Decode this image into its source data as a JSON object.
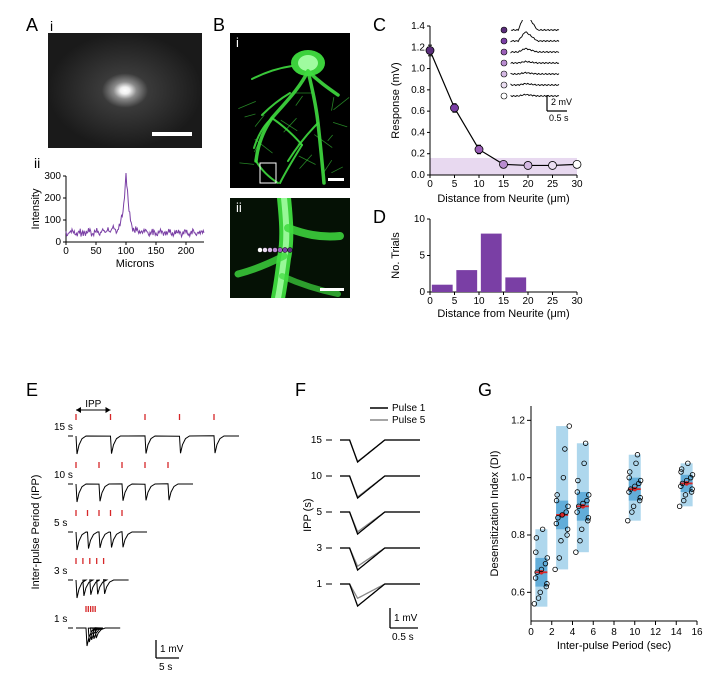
{
  "labels": {
    "A": "A",
    "B": "B",
    "C": "C",
    "D": "D",
    "E": "E",
    "F": "F",
    "G": "G",
    "i": "i",
    "ii": "ii"
  },
  "colors": {
    "purple": "#7a3fa5",
    "purple_fill": "#9b5fb8",
    "green": "#3fdc3f",
    "green_dark": "#1f9f1f",
    "gray": "#888888",
    "black": "#000000",
    "red": "#d62728",
    "box_blue": "#8bc6e6",
    "box_mean": "#d62728"
  },
  "panelA": {
    "spot": {
      "scalebar_color": "#ffffff",
      "background": "#1a1a1a"
    },
    "intensity": {
      "x": [
        0,
        5,
        10,
        15,
        20,
        25,
        30,
        35,
        40,
        45,
        50,
        55,
        60,
        65,
        70,
        75,
        80,
        85,
        90,
        95,
        100,
        105,
        110,
        115,
        120,
        125,
        130,
        135,
        140,
        145,
        150,
        155,
        160,
        165,
        170,
        175,
        180,
        185,
        190,
        195,
        200,
        205,
        210,
        215,
        220,
        225,
        230
      ],
      "y": [
        40,
        42,
        44,
        41,
        43,
        40,
        45,
        42,
        44,
        43,
        42,
        50,
        48,
        46,
        52,
        55,
        58,
        60,
        70,
        140,
        300,
        140,
        70,
        55,
        50,
        48,
        46,
        44,
        43,
        42,
        44,
        43,
        41,
        42,
        43,
        44,
        42,
        43,
        41,
        40,
        42,
        43,
        44,
        42,
        41,
        40,
        42
      ],
      "yticks": [
        0,
        100,
        200,
        300
      ],
      "xticks": [
        0,
        50,
        100,
        150,
        200
      ],
      "xlabel": "Microns",
      "ylabel": "Intensity",
      "line_color": "#7a3fa5"
    }
  },
  "panelB": {
    "neuron_color": "#3fdc3f",
    "background": "#000000",
    "scalebar_color": "#ffffff"
  },
  "panelC": {
    "x": [
      0,
      5,
      10,
      15,
      20,
      25,
      30
    ],
    "y": [
      1.17,
      0.63,
      0.24,
      0.1,
      0.09,
      0.09,
      0.1
    ],
    "err": [
      0.05,
      0.04,
      0.04,
      0.03,
      0.03,
      0.03,
      0.03
    ],
    "point_fills": [
      "#5a2d7a",
      "#7a3fa5",
      "#9b5fb8",
      "#b98cd0",
      "#d4b8e3",
      "#eaddf1",
      "#ffffff"
    ],
    "point_stroke": "#000000",
    "baseline_fill": "#e8d9f0",
    "baseline_y": 0.16,
    "xticks": [
      0,
      5,
      10,
      15,
      20,
      25,
      30
    ],
    "yticks": [
      0,
      0.2,
      0.4,
      0.6,
      0.8,
      1.0,
      1.2,
      1.4
    ],
    "xlabel": "Distance from Neurite (μm)",
    "ylabel": "Response (mV)",
    "inset_scale_x": "0.5 s",
    "inset_scale_y": "2 mV"
  },
  "panelD": {
    "bins": [
      2.5,
      7.5,
      12.5,
      17.5,
      22.5,
      27.5
    ],
    "counts": [
      1,
      3,
      8,
      2,
      0,
      0
    ],
    "bar_color": "#7a3fa5",
    "xticks": [
      0,
      5,
      10,
      15,
      20,
      25,
      30
    ],
    "yticks": [
      0,
      5,
      10
    ],
    "xlabel": "Distance from Neurite (μm)",
    "ylabel": "No. Trials"
  },
  "panelE": {
    "ipp_values": [
      15,
      10,
      5,
      3,
      1
    ],
    "ipp_label": "IPP",
    "ylabel": "Inter-pulse Period (IPP)",
    "scale_x": "5 s",
    "scale_y": "1 mV",
    "tick_color": "#d62728",
    "trace_color": "#000000",
    "rows": {
      "15": {
        "n": 5,
        "amps": [
          1.0,
          0.98,
          0.97,
          0.96,
          0.95
        ]
      },
      "10": {
        "n": 5,
        "amps": [
          1.0,
          0.96,
          0.93,
          0.91,
          0.9
        ]
      },
      "5": {
        "n": 5,
        "amps": [
          1.0,
          0.92,
          0.88,
          0.86,
          0.85
        ]
      },
      "3": {
        "n": 5,
        "amps": [
          1.0,
          0.88,
          0.82,
          0.79,
          0.77
        ]
      },
      "1": {
        "n": 5,
        "amps": [
          1.0,
          0.78,
          0.66,
          0.6,
          0.56
        ]
      }
    }
  },
  "panelF": {
    "legend": {
      "pulse1": "Pulse 1",
      "pulse5": "Pulse 5"
    },
    "pulse1_color": "#000000",
    "pulse5_color": "#888888",
    "ipp_values": [
      15,
      10,
      5,
      3,
      1
    ],
    "ipp_label": "IPP (s)",
    "scale_x": "0.5 s",
    "scale_y": "1 mV",
    "ratios": [
      0.98,
      0.95,
      0.9,
      0.83,
      0.65
    ]
  },
  "panelG": {
    "xlabel": "Inter-pulse Period (sec)",
    "ylabel": "Desensitization Index (DI)",
    "xticks": [
      0,
      2,
      4,
      6,
      8,
      10,
      12,
      14,
      16
    ],
    "yticks": [
      0.6,
      0.8,
      1.0,
      1.2
    ],
    "box_color": "#8bc6e6",
    "box_inner": "#5aa9d6",
    "median_color": "#d62728",
    "point_stroke": "#000000",
    "groups": [
      {
        "x": 1,
        "median": 0.67,
        "q1": 0.62,
        "q3": 0.72,
        "w_lo": 0.55,
        "w_hi": 0.82,
        "pts": [
          0.56,
          0.58,
          0.6,
          0.62,
          0.63,
          0.65,
          0.67,
          0.68,
          0.7,
          0.72,
          0.74,
          0.79,
          0.82
        ]
      },
      {
        "x": 3,
        "median": 0.87,
        "q1": 0.82,
        "q3": 0.92,
        "w_lo": 0.68,
        "w_hi": 1.18,
        "pts": [
          0.68,
          0.72,
          0.78,
          0.8,
          0.82,
          0.84,
          0.86,
          0.87,
          0.88,
          0.9,
          0.92,
          0.94,
          1.0,
          1.1,
          1.18
        ]
      },
      {
        "x": 5,
        "median": 0.9,
        "q1": 0.85,
        "q3": 0.95,
        "w_lo": 0.74,
        "w_hi": 1.12,
        "pts": [
          0.74,
          0.78,
          0.82,
          0.85,
          0.86,
          0.88,
          0.9,
          0.91,
          0.92,
          0.94,
          0.95,
          0.99,
          1.05,
          1.12
        ]
      },
      {
        "x": 10,
        "median": 0.96,
        "q1": 0.92,
        "q3": 1.0,
        "w_lo": 0.85,
        "w_hi": 1.08,
        "pts": [
          0.85,
          0.88,
          0.9,
          0.92,
          0.93,
          0.95,
          0.96,
          0.97,
          0.98,
          0.99,
          1.0,
          1.02,
          1.05,
          1.08
        ]
      },
      {
        "x": 15,
        "median": 0.98,
        "q1": 0.95,
        "q3": 1.01,
        "w_lo": 0.9,
        "w_hi": 1.05,
        "pts": [
          0.9,
          0.92,
          0.94,
          0.95,
          0.96,
          0.97,
          0.98,
          0.99,
          1.0,
          1.01,
          1.02,
          1.03,
          1.05
        ]
      }
    ]
  }
}
